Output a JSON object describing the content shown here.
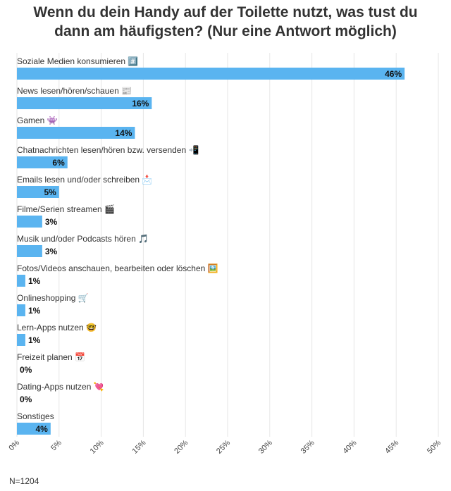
{
  "chart_data": {
    "type": "bar",
    "orientation": "horizontal",
    "title": "Wenn du dein Handy auf der Toilette nutzt, was tust du dann am häufigsten? (Nur eine Antwort möglich)",
    "categories": [
      "Soziale Medien konsumieren #️⃣",
      "News lesen/hören/schauen 📰",
      "Gamen 👾",
      "Chatnachrichten lesen/hören bzw. versenden 📲",
      "Emails lesen und/oder schreiben 📩",
      "Filme/Serien streamen 🎬",
      "Musik und/oder Podcasts hören 🎵",
      "Fotos/Videos anschauen, bearbeiten oder löschen 🖼️",
      "Onlineshopping 🛒",
      "Lern-Apps nutzen 🤓",
      "Freizeit planen 📅",
      "Dating-Apps nutzen 💘",
      "Sonstiges"
    ],
    "values": [
      46,
      16,
      14,
      6,
      5,
      3,
      3,
      1,
      1,
      1,
      0,
      0,
      4
    ],
    "value_labels": [
      "46%",
      "16%",
      "14%",
      "6%",
      "5%",
      "3%",
      "3%",
      "1%",
      "1%",
      "1%",
      "0%",
      "0%",
      "4%"
    ],
    "xlim": [
      0,
      50
    ],
    "ticks": [
      "0%",
      "5%",
      "10%",
      "15%",
      "20%",
      "25%",
      "30%",
      "35%",
      "40%",
      "45%",
      "50%"
    ],
    "grid": true,
    "bar_color": "#5ab4f0",
    "note": "N=1204"
  }
}
